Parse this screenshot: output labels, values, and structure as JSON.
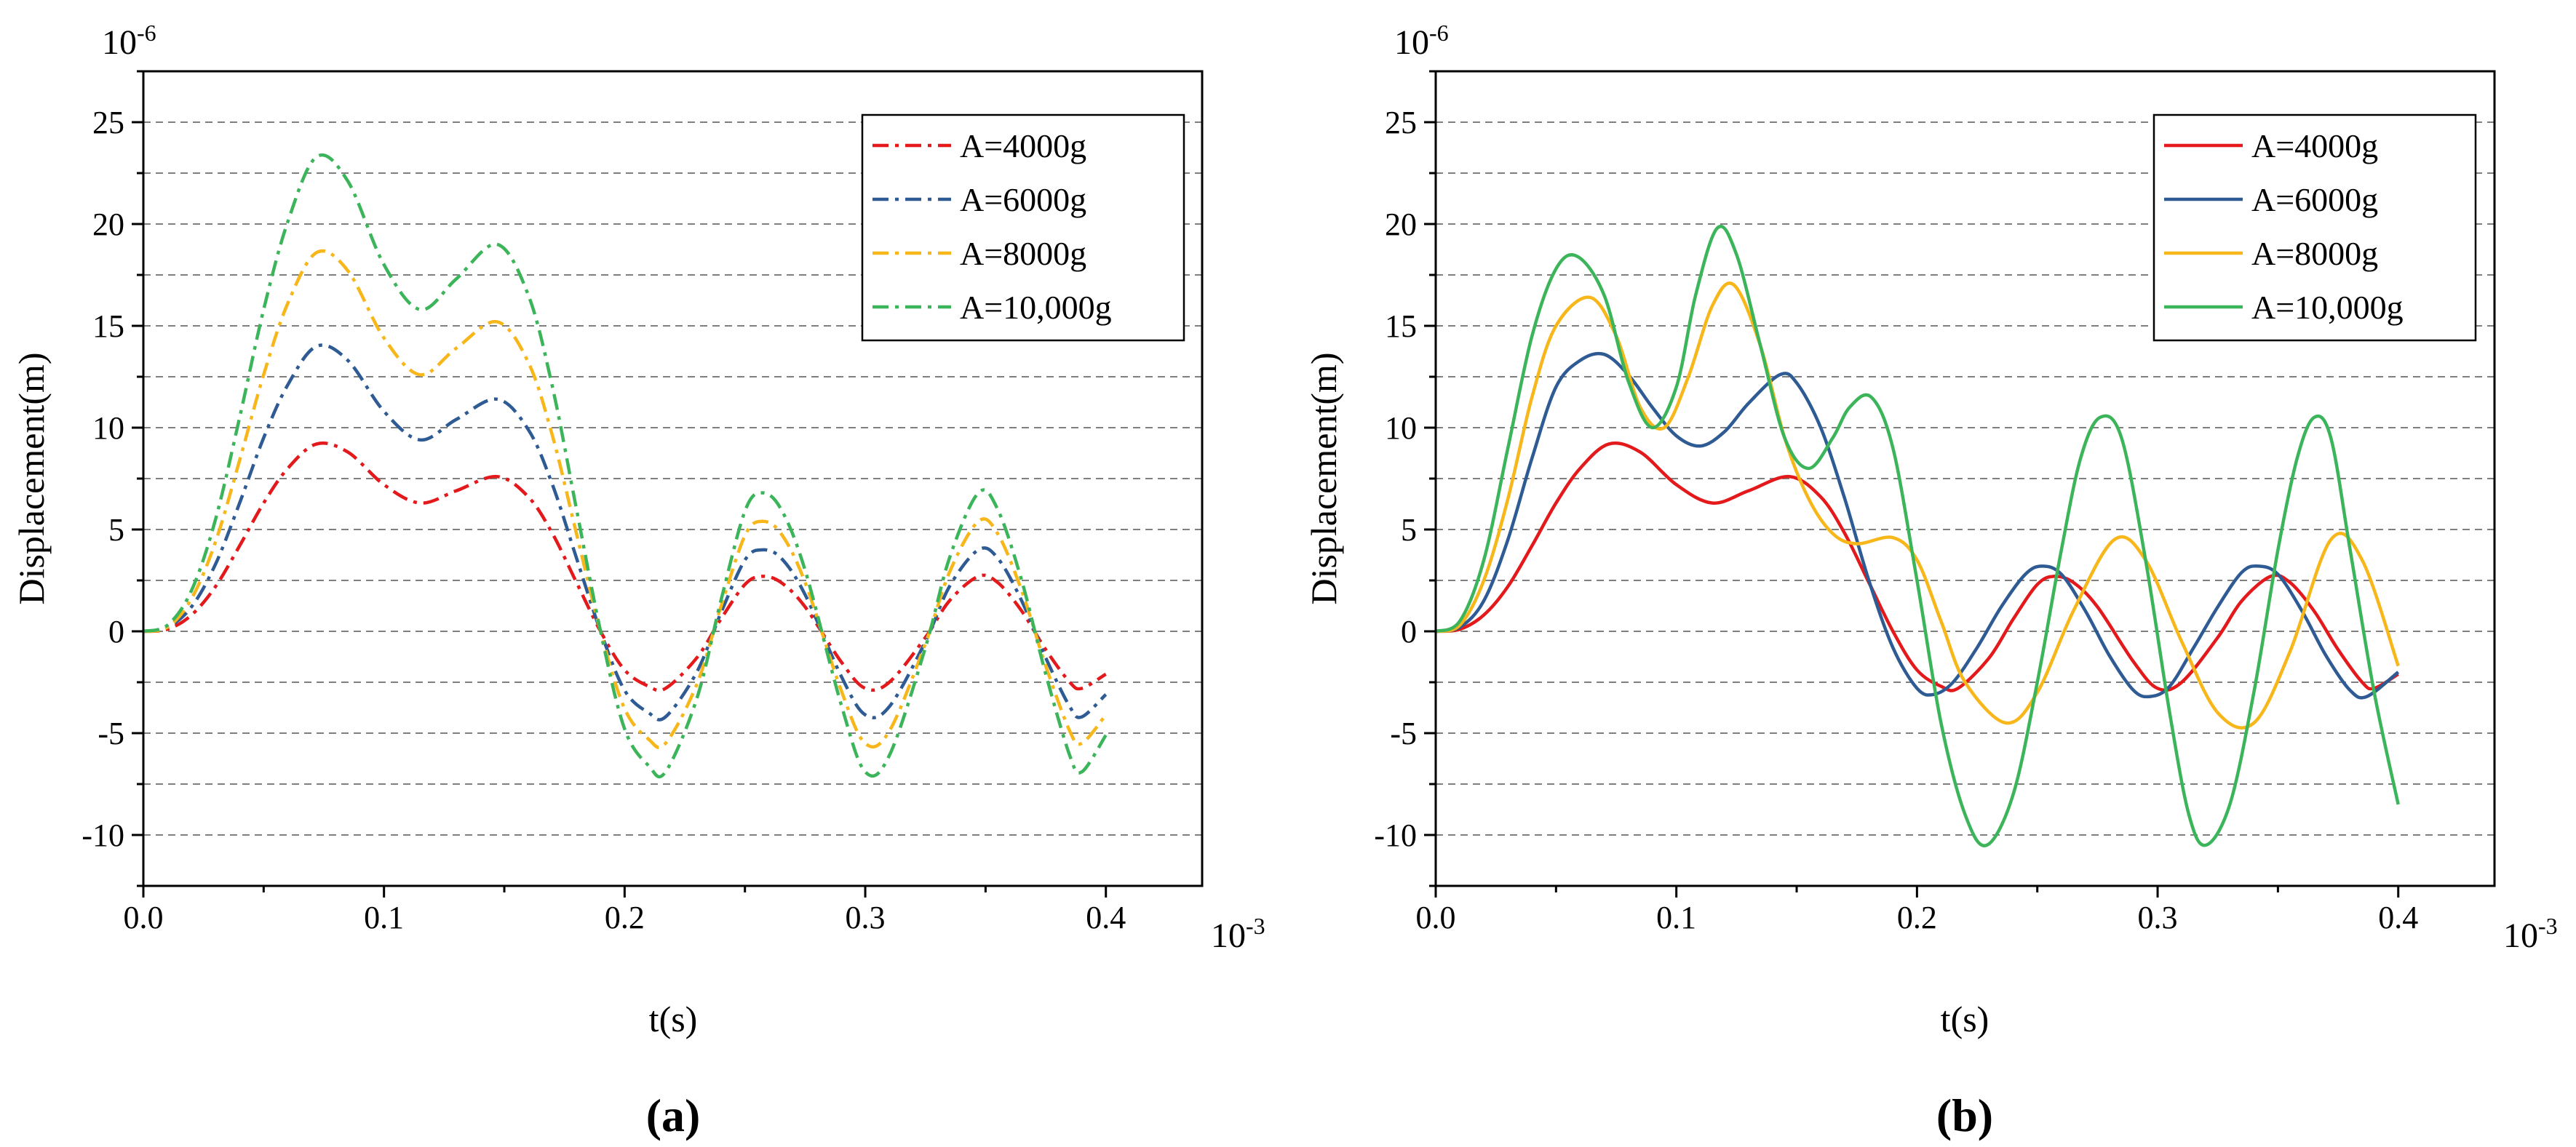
{
  "colors": {
    "red": "#e3191c",
    "blue": "#2e5b94",
    "yellow": "#f7b71b",
    "green": "#3cb55a",
    "grid": "#7f7f7f",
    "axis": "#000000"
  },
  "chart_data": [
    {
      "type": "line",
      "panel_label": "(a)",
      "line_style": "dash-dot",
      "xlabel": "t(s)",
      "ylabel": "Displacement(m)",
      "x_multiplier": "10-3",
      "x_multiplier_base": "10",
      "x_multiplier_exp": "-3",
      "y_multiplier": "10-6",
      "y_multiplier_base": "10",
      "y_multiplier_exp": "-6",
      "xlim": [
        0,
        0.44
      ],
      "ylim": [
        -12.5,
        27.5
      ],
      "xticks": [
        0.0,
        0.1,
        0.2,
        0.3,
        0.4
      ],
      "xtick_labels": [
        "0.0",
        "0.1",
        "0.2",
        "0.3",
        "0.4"
      ],
      "yticks": [
        -10,
        -5,
        0,
        5,
        10,
        15,
        20,
        25
      ],
      "ytick_labels": [
        "-10",
        "-5",
        "0",
        "5",
        "10",
        "15",
        "20",
        "25"
      ],
      "grid": "horizontal dashed every 2.5",
      "legend_position": "top-right",
      "series": [
        {
          "name": "A=4000g",
          "color": "#e3191c",
          "x": [
            0,
            0.01,
            0.02,
            0.03,
            0.04,
            0.05,
            0.06,
            0.072,
            0.085,
            0.1,
            0.115,
            0.13,
            0.147,
            0.16,
            0.17,
            0.18,
            0.19,
            0.2,
            0.21,
            0.217,
            0.23,
            0.24,
            0.25,
            0.257,
            0.265,
            0.275,
            0.29,
            0.3,
            0.31,
            0.325,
            0.335,
            0.347,
            0.355,
            0.365,
            0.375,
            0.385,
            0.39,
            0.4
          ],
          "y": [
            0,
            0.1,
            0.8,
            2.2,
            4.2,
            6.3,
            8.0,
            9.2,
            8.8,
            7.2,
            6.3,
            6.9,
            7.6,
            6.6,
            4.8,
            2.4,
            0.0,
            -1.9,
            -2.7,
            -2.8,
            -1.3,
            0.6,
            2.3,
            2.7,
            2.4,
            1.2,
            -1.5,
            -2.8,
            -2.5,
            -0.3,
            1.5,
            2.7,
            2.4,
            1.0,
            -0.9,
            -2.5,
            -2.8,
            -2.1
          ]
        },
        {
          "name": "A=6000g",
          "color": "#2e5b94",
          "x": [
            0,
            0.01,
            0.02,
            0.03,
            0.04,
            0.05,
            0.06,
            0.072,
            0.085,
            0.1,
            0.115,
            0.13,
            0.147,
            0.16,
            0.17,
            0.18,
            0.19,
            0.2,
            0.21,
            0.217,
            0.23,
            0.24,
            0.25,
            0.257,
            0.265,
            0.275,
            0.29,
            0.3,
            0.31,
            0.325,
            0.335,
            0.347,
            0.355,
            0.365,
            0.375,
            0.385,
            0.39,
            0.4
          ],
          "y": [
            0,
            0.2,
            1.2,
            3.3,
            6.3,
            9.5,
            12.1,
            14.0,
            13.3,
            10.8,
            9.4,
            10.4,
            11.4,
            9.9,
            7.2,
            3.6,
            0.0,
            -2.9,
            -4.0,
            -4.2,
            -2.0,
            0.9,
            3.5,
            4.0,
            3.6,
            1.8,
            -2.2,
            -4.1,
            -3.7,
            -0.5,
            2.2,
            4.0,
            3.6,
            1.5,
            -1.3,
            -3.7,
            -4.2,
            -3.1
          ]
        },
        {
          "name": "A=8000g",
          "color": "#f7b71b",
          "x": [
            0,
            0.01,
            0.02,
            0.03,
            0.04,
            0.05,
            0.06,
            0.072,
            0.085,
            0.1,
            0.115,
            0.13,
            0.147,
            0.16,
            0.17,
            0.18,
            0.19,
            0.2,
            0.21,
            0.217,
            0.23,
            0.24,
            0.25,
            0.257,
            0.265,
            0.275,
            0.29,
            0.3,
            0.31,
            0.325,
            0.335,
            0.347,
            0.355,
            0.365,
            0.375,
            0.385,
            0.39,
            0.4
          ],
          "y": [
            0,
            0.2,
            1.6,
            4.4,
            8.4,
            12.6,
            16.1,
            18.6,
            17.7,
            14.4,
            12.6,
            13.9,
            15.2,
            13.2,
            9.6,
            4.8,
            0.0,
            -3.8,
            -5.3,
            -5.5,
            -2.6,
            1.2,
            4.7,
            5.4,
            4.8,
            2.4,
            -2.9,
            -5.5,
            -4.9,
            -0.6,
            2.9,
            5.4,
            4.8,
            2.0,
            -1.7,
            -4.9,
            -5.5,
            -4.1
          ]
        },
        {
          "name": "A=10,000g",
          "color": "#3cb55a",
          "x": [
            0,
            0.01,
            0.02,
            0.03,
            0.04,
            0.05,
            0.06,
            0.072,
            0.085,
            0.1,
            0.115,
            0.13,
            0.147,
            0.16,
            0.17,
            0.18,
            0.19,
            0.2,
            0.21,
            0.217,
            0.23,
            0.24,
            0.25,
            0.257,
            0.265,
            0.275,
            0.29,
            0.3,
            0.31,
            0.325,
            0.335,
            0.347,
            0.355,
            0.365,
            0.375,
            0.385,
            0.39,
            0.4
          ],
          "y": [
            0,
            0.3,
            2.0,
            5.5,
            10.5,
            15.8,
            20.1,
            23.3,
            22.1,
            18.0,
            15.8,
            17.3,
            19.0,
            16.5,
            12.0,
            6.0,
            0.0,
            -4.8,
            -6.6,
            -6.9,
            -3.3,
            1.5,
            5.9,
            6.8,
            6.0,
            3.0,
            -3.6,
            -6.9,
            -6.1,
            -0.8,
            3.6,
            6.8,
            6.0,
            2.5,
            -2.1,
            -6.1,
            -6.9,
            -5.1
          ]
        }
      ]
    },
    {
      "type": "line",
      "panel_label": "(b)",
      "line_style": "solid",
      "xlabel": "t(s)",
      "ylabel": "Displacement(m)",
      "x_multiplier": "10-3",
      "x_multiplier_base": "10",
      "x_multiplier_exp": "-3",
      "y_multiplier": "10-6",
      "y_multiplier_base": "10",
      "y_multiplier_exp": "-6",
      "xlim": [
        0,
        0.44
      ],
      "ylim": [
        -12.5,
        27.5
      ],
      "xticks": [
        0.0,
        0.1,
        0.2,
        0.3,
        0.4
      ],
      "xtick_labels": [
        "0.0",
        "0.1",
        "0.2",
        "0.3",
        "0.4"
      ],
      "yticks": [
        -10,
        -5,
        0,
        5,
        10,
        15,
        20,
        25
      ],
      "ytick_labels": [
        "-10",
        "-5",
        "0",
        "5",
        "10",
        "15",
        "20",
        "25"
      ],
      "grid": "horizontal dashed every 2.5",
      "legend_position": "top-right",
      "series": [
        {
          "name": "A=4000g",
          "color": "#e3191c",
          "x": [
            0,
            0.01,
            0.02,
            0.03,
            0.04,
            0.05,
            0.06,
            0.072,
            0.085,
            0.1,
            0.115,
            0.13,
            0.147,
            0.16,
            0.17,
            0.18,
            0.19,
            0.2,
            0.21,
            0.217,
            0.23,
            0.24,
            0.25,
            0.257,
            0.265,
            0.275,
            0.29,
            0.3,
            0.31,
            0.325,
            0.335,
            0.347,
            0.355,
            0.365,
            0.375,
            0.385,
            0.39,
            0.4
          ],
          "y": [
            0,
            0.1,
            0.8,
            2.2,
            4.2,
            6.3,
            8.0,
            9.2,
            8.8,
            7.2,
            6.3,
            6.9,
            7.6,
            6.6,
            4.8,
            2.4,
            0.0,
            -1.9,
            -2.7,
            -2.8,
            -1.3,
            0.6,
            2.3,
            2.7,
            2.4,
            1.2,
            -1.5,
            -2.8,
            -2.5,
            -0.3,
            1.5,
            2.7,
            2.4,
            1.0,
            -0.9,
            -2.5,
            -2.8,
            -2.1
          ]
        },
        {
          "name": "A=6000g",
          "color": "#2e5b94",
          "x": [
            0,
            0.01,
            0.02,
            0.03,
            0.04,
            0.05,
            0.06,
            0.07,
            0.08,
            0.09,
            0.1,
            0.11,
            0.12,
            0.13,
            0.143,
            0.15,
            0.16,
            0.17,
            0.18,
            0.19,
            0.2,
            0.207,
            0.215,
            0.225,
            0.235,
            0.245,
            0.252,
            0.26,
            0.27,
            0.28,
            0.29,
            0.297,
            0.305,
            0.315,
            0.325,
            0.335,
            0.342,
            0.35,
            0.36,
            0.37,
            0.38,
            0.387,
            0.4
          ],
          "y": [
            0,
            0.2,
            1.5,
            4.5,
            8.5,
            12.0,
            13.3,
            13.6,
            12.6,
            11.0,
            9.6,
            9.1,
            9.8,
            11.2,
            12.6,
            12.2,
            10.0,
            6.5,
            2.5,
            -0.8,
            -2.8,
            -3.1,
            -2.5,
            -0.8,
            1.2,
            2.8,
            3.2,
            2.8,
            1.0,
            -1.2,
            -2.9,
            -3.2,
            -2.7,
            -0.8,
            1.2,
            2.9,
            3.2,
            2.8,
            1.0,
            -1.2,
            -2.9,
            -3.2,
            -2.0
          ]
        },
        {
          "name": "A=8000g",
          "color": "#f7b71b",
          "x": [
            0,
            0.01,
            0.02,
            0.03,
            0.04,
            0.05,
            0.064,
            0.075,
            0.085,
            0.095,
            0.105,
            0.115,
            0.124,
            0.135,
            0.145,
            0.155,
            0.165,
            0.175,
            0.19,
            0.2,
            0.21,
            0.22,
            0.237,
            0.25,
            0.265,
            0.282,
            0.295,
            0.31,
            0.325,
            0.34,
            0.355,
            0.372,
            0.385,
            0.4
          ],
          "y": [
            0,
            0.3,
            2.5,
            6.5,
            11.5,
            15.0,
            16.4,
            14.5,
            11.0,
            10.0,
            12.5,
            16.0,
            17.0,
            14.0,
            9.5,
            6.5,
            4.8,
            4.3,
            4.6,
            3.5,
            0.5,
            -2.5,
            -4.5,
            -3.0,
            1.0,
            4.5,
            3.5,
            -0.5,
            -4.0,
            -4.5,
            -1.0,
            4.5,
            3.5,
            -1.7
          ]
        },
        {
          "name": "A=10,000g",
          "color": "#3cb55a",
          "x": [
            0,
            0.01,
            0.02,
            0.03,
            0.04,
            0.05,
            0.059,
            0.07,
            0.08,
            0.09,
            0.1,
            0.108,
            0.117,
            0.125,
            0.135,
            0.145,
            0.155,
            0.165,
            0.172,
            0.181,
            0.19,
            0.2,
            0.21,
            0.22,
            0.229,
            0.24,
            0.25,
            0.26,
            0.268,
            0.276,
            0.285,
            0.295,
            0.305,
            0.313,
            0.32,
            0.33,
            0.34,
            0.35,
            0.358,
            0.365,
            0.372,
            0.38,
            0.39,
            0.4
          ],
          "y": [
            0,
            0.5,
            3.5,
            9.0,
            14.5,
            17.8,
            18.4,
            16.5,
            12.3,
            10.0,
            12.0,
            16.5,
            19.8,
            18.5,
            14.0,
            9.5,
            8.0,
            9.5,
            11.0,
            11.5,
            9.0,
            2.5,
            -4.5,
            -9.0,
            -10.5,
            -8.0,
            -2.5,
            4.0,
            8.5,
            10.5,
            9.5,
            3.5,
            -4.0,
            -9.0,
            -10.5,
            -8.5,
            -3.0,
            4.0,
            8.5,
            10.5,
            9.5,
            4.0,
            -3.0,
            -8.5
          ]
        }
      ]
    }
  ]
}
